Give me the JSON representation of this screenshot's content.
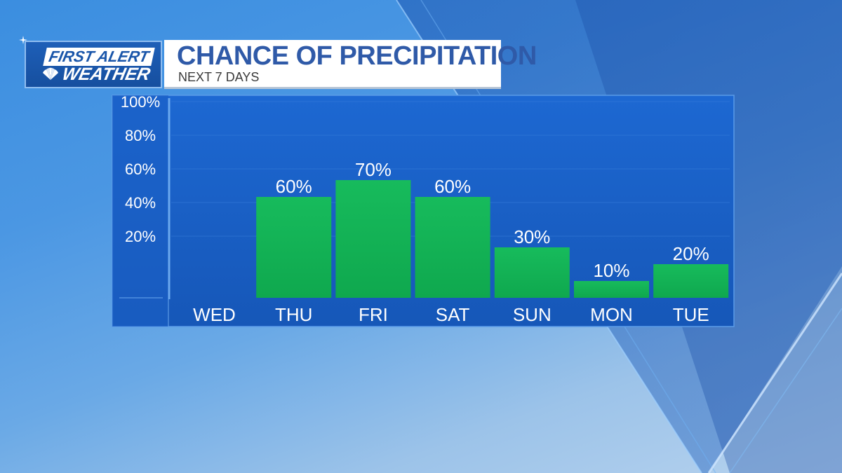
{
  "header": {
    "logo_line1": "FIRST ALERT",
    "logo_line2": "WEATHER",
    "title": "CHANCE OF PRECIPITATION",
    "subtitle": "NEXT 7 DAYS"
  },
  "colors": {
    "bar": "#14b457",
    "panel": "#1c63c9",
    "title_text": "#2f5aa8"
  },
  "chart_data": {
    "type": "bar",
    "title": "CHANCE OF PRECIPITATION",
    "subtitle": "NEXT 7 DAYS",
    "xlabel": "",
    "ylabel": "",
    "categories": [
      "WED",
      "THU",
      "FRI",
      "SAT",
      "SUN",
      "MON",
      "TUE"
    ],
    "values": [
      0,
      60,
      70,
      60,
      30,
      10,
      20
    ],
    "value_labels": [
      "",
      "60%",
      "70%",
      "60%",
      "30%",
      "10%",
      "20%"
    ],
    "y_ticks": [
      20,
      40,
      60,
      80,
      100
    ],
    "y_tick_labels": [
      "20%",
      "40%",
      "60%",
      "80%",
      "100%"
    ],
    "ylim": [
      0,
      100
    ],
    "grid": true,
    "legend": "none"
  }
}
